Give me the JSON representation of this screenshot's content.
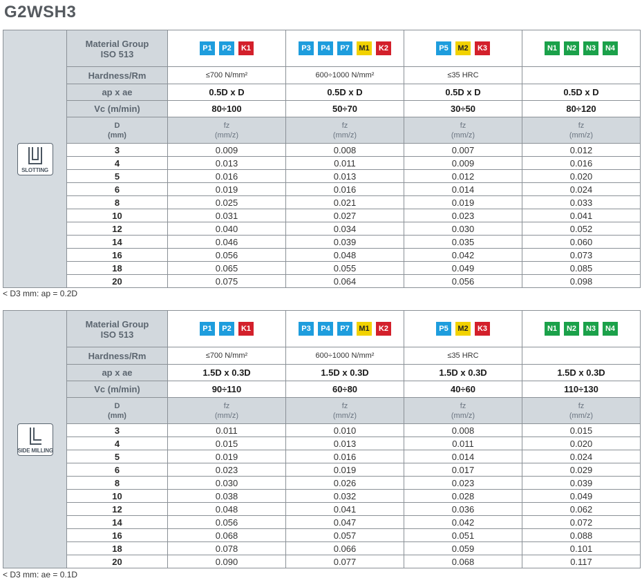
{
  "title": "G2WSH3",
  "badge_colors": {
    "P": "#1e9ddd",
    "K": "#d3202b",
    "M": "#f2d200",
    "N": "#1ba14a"
  },
  "tables": [
    {
      "op_label": "SLOTTING",
      "op_icon": "slotting-icon",
      "row_labels": {
        "material_group_line1": "Material Group",
        "material_group_line2": "ISO 513",
        "hardness": "Hardness/Rm",
        "apae": "ap x ae",
        "vc": "Vc (m/min)",
        "d_line1": "D",
        "d_line2": "(mm)",
        "fz_line1": "fz",
        "fz_line2": "(mm/z)"
      },
      "columns": [
        {
          "badges": [
            "P1",
            "P2",
            "K1"
          ],
          "hardness": "≤700 N/mm²",
          "apae": "0.5D x D",
          "vc": "80÷100"
        },
        {
          "badges": [
            "P3",
            "P4",
            "P7",
            "M1",
            "K2"
          ],
          "hardness": "600÷1000 N/mm²",
          "apae": "0.5D x D",
          "vc": "50÷70"
        },
        {
          "badges": [
            "P5",
            "M2",
            "K3"
          ],
          "hardness": "≤35 HRC",
          "apae": "0.5D x D",
          "vc": "30÷50"
        },
        {
          "badges": [
            "N1",
            "N2",
            "N3",
            "N4"
          ],
          "hardness": "",
          "apae": "0.5D x D",
          "vc": "80÷120"
        }
      ],
      "rows": [
        {
          "d": "3",
          "fz": [
            "0.009",
            "0.008",
            "0.007",
            "0.012"
          ]
        },
        {
          "d": "4",
          "fz": [
            "0.013",
            "0.011",
            "0.009",
            "0.016"
          ]
        },
        {
          "d": "5",
          "fz": [
            "0.016",
            "0.013",
            "0.012",
            "0.020"
          ]
        },
        {
          "d": "6",
          "fz": [
            "0.019",
            "0.016",
            "0.014",
            "0.024"
          ]
        },
        {
          "d": "8",
          "fz": [
            "0.025",
            "0.021",
            "0.019",
            "0.033"
          ]
        },
        {
          "d": "10",
          "fz": [
            "0.031",
            "0.027",
            "0.023",
            "0.041"
          ]
        },
        {
          "d": "12",
          "fz": [
            "0.040",
            "0.034",
            "0.030",
            "0.052"
          ]
        },
        {
          "d": "14",
          "fz": [
            "0.046",
            "0.039",
            "0.035",
            "0.060"
          ]
        },
        {
          "d": "16",
          "fz": [
            "0.056",
            "0.048",
            "0.042",
            "0.073"
          ]
        },
        {
          "d": "18",
          "fz": [
            "0.065",
            "0.055",
            "0.049",
            "0.085"
          ]
        },
        {
          "d": "20",
          "fz": [
            "0.075",
            "0.064",
            "0.056",
            "0.098"
          ]
        }
      ],
      "note": "< D3 mm: ap = 0.2D"
    },
    {
      "op_label": "SIDE MILLING",
      "op_icon": "side-milling-icon",
      "row_labels": {
        "material_group_line1": "Material Group",
        "material_group_line2": "ISO 513",
        "hardness": "Hardness/Rm",
        "apae": "ap x ae",
        "vc": "Vc (m/min)",
        "d_line1": "D",
        "d_line2": "(mm)",
        "fz_line1": "fz",
        "fz_line2": "(mm/z)"
      },
      "columns": [
        {
          "badges": [
            "P1",
            "P2",
            "K1"
          ],
          "hardness": "≤700 N/mm²",
          "apae": "1.5D x 0.3D",
          "vc": "90÷110"
        },
        {
          "badges": [
            "P3",
            "P4",
            "P7",
            "M1",
            "K2"
          ],
          "hardness": "600÷1000 N/mm²",
          "apae": "1.5D x 0.3D",
          "vc": "60÷80"
        },
        {
          "badges": [
            "P5",
            "M2",
            "K3"
          ],
          "hardness": "≤35 HRC",
          "apae": "1.5D x 0.3D",
          "vc": "40÷60"
        },
        {
          "badges": [
            "N1",
            "N2",
            "N3",
            "N4"
          ],
          "hardness": "",
          "apae": "1.5D x 0.3D",
          "vc": "110÷130"
        }
      ],
      "rows": [
        {
          "d": "3",
          "fz": [
            "0.011",
            "0.010",
            "0.008",
            "0.015"
          ]
        },
        {
          "d": "4",
          "fz": [
            "0.015",
            "0.013",
            "0.011",
            "0.020"
          ]
        },
        {
          "d": "5",
          "fz": [
            "0.019",
            "0.016",
            "0.014",
            "0.024"
          ]
        },
        {
          "d": "6",
          "fz": [
            "0.023",
            "0.019",
            "0.017",
            "0.029"
          ]
        },
        {
          "d": "8",
          "fz": [
            "0.030",
            "0.026",
            "0.023",
            "0.039"
          ]
        },
        {
          "d": "10",
          "fz": [
            "0.038",
            "0.032",
            "0.028",
            "0.049"
          ]
        },
        {
          "d": "12",
          "fz": [
            "0.048",
            "0.041",
            "0.036",
            "0.062"
          ]
        },
        {
          "d": "14",
          "fz": [
            "0.056",
            "0.047",
            "0.042",
            "0.072"
          ]
        },
        {
          "d": "16",
          "fz": [
            "0.068",
            "0.057",
            "0.051",
            "0.088"
          ]
        },
        {
          "d": "18",
          "fz": [
            "0.078",
            "0.066",
            "0.059",
            "0.101"
          ]
        },
        {
          "d": "20",
          "fz": [
            "0.090",
            "0.077",
            "0.068",
            "0.117"
          ]
        }
      ],
      "note": "< D3 mm: ae = 0.1D"
    }
  ]
}
